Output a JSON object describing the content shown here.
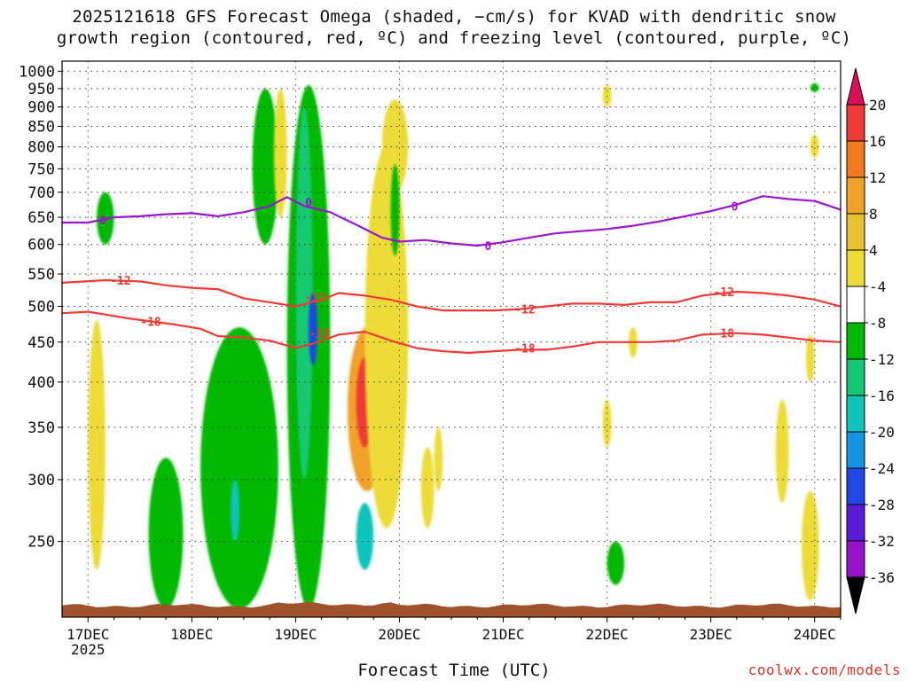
{
  "title_line1": "2025121618 GFS Forecast Omega (shaded, −cm/s) for KVAD with dendritic snow",
  "title_line2": "growth region (contoured, red, ºC) and freezing level (contoured, purple, ºC)",
  "credit": "coolwx.com/models",
  "chart_data": {
    "type": "heatmap",
    "title": "2025121618 GFS Forecast Omega (shaded, −cm/s) for KVAD with dendritic snow growth region (contoured, red, ºC) and freezing level (contoured, purple, ºC)",
    "xlabel": "Forecast Time (UTC)",
    "ylabel": "",
    "x_ticks": [
      {
        "label": "17DEC",
        "sub": "2025",
        "hour": 0
      },
      {
        "label": "18DEC",
        "sub": "",
        "hour": 24
      },
      {
        "label": "19DEC",
        "sub": "",
        "hour": 48
      },
      {
        "label": "20DEC",
        "sub": "",
        "hour": 72
      },
      {
        "label": "21DEC",
        "sub": "",
        "hour": 96
      },
      {
        "label": "22DEC",
        "sub": "",
        "hour": 120
      },
      {
        "label": "23DEC",
        "sub": "",
        "hour": 144
      },
      {
        "label": "24DEC",
        "sub": "",
        "hour": 168
      }
    ],
    "xlim_hours": [
      -6,
      174
    ],
    "y_axis": {
      "type": "log-pressure",
      "unit": "hPa",
      "ylim": [
        1030,
        200
      ],
      "inverted": true
    },
    "y_ticks": [
      250,
      300,
      350,
      400,
      450,
      500,
      550,
      600,
      650,
      700,
      750,
      800,
      850,
      900,
      950,
      1000
    ],
    "colorbar": {
      "label_values": [
        20,
        16,
        12,
        8,
        4,
        -4,
        -8,
        -12,
        -16,
        -20,
        -24,
        -28,
        -32,
        -36
      ],
      "colors": [
        "#da0f5a",
        "#ef3b36",
        "#f2791e",
        "#f2a129",
        "#e8c330",
        "#eddb38",
        "#ffffff",
        "#00b900",
        "#13c870",
        "#10c4bc",
        "#1395e6",
        "#1f47e6",
        "#5c19d8",
        "#9712c8",
        "#a3a3a3"
      ]
    },
    "omega_regions": [
      {
        "t0": 0,
        "t1": 4,
        "p0": 230,
        "p1": 480,
        "value": 5
      },
      {
        "t0": 2,
        "t1": 6,
        "p0": 600,
        "p1": 700,
        "value": -5
      },
      {
        "t0": 14,
        "t1": 22,
        "p0": 205,
        "p1": 320,
        "value": -6
      },
      {
        "t0": 26,
        "t1": 44,
        "p0": 205,
        "p1": 470,
        "value": -6
      },
      {
        "t0": 33,
        "t1": 35,
        "p0": 250,
        "p1": 300,
        "value": -13
      },
      {
        "t0": 46,
        "t1": 56,
        "p0": 205,
        "p1": 960,
        "value": -6
      },
      {
        "t0": 48,
        "t1": 52,
        "p0": 300,
        "p1": 900,
        "value": -10
      },
      {
        "t0": 51,
        "t1": 53,
        "p0": 420,
        "p1": 520,
        "value": -22
      },
      {
        "t0": 38,
        "t1": 44,
        "p0": 600,
        "p1": 950,
        "value": -6
      },
      {
        "t0": 43,
        "t1": 46,
        "p0": 650,
        "p1": 950,
        "value": 5
      },
      {
        "t0": 62,
        "t1": 66,
        "p0": 230,
        "p1": 280,
        "value": -14
      },
      {
        "t0": 60,
        "t1": 69,
        "p0": 290,
        "p1": 470,
        "value": 10
      },
      {
        "t0": 62,
        "t1": 66,
        "p0": 330,
        "p1": 430,
        "value": 18
      },
      {
        "t0": 64,
        "t1": 74,
        "p0": 260,
        "p1": 800,
        "value": 5
      },
      {
        "t0": 68,
        "t1": 74,
        "p0": 700,
        "p1": 920,
        "value": 5
      },
      {
        "t0": 70,
        "t1": 72,
        "p0": 580,
        "p1": 760,
        "value": -6
      },
      {
        "t0": 77,
        "t1": 80,
        "p0": 260,
        "p1": 330,
        "value": 5
      },
      {
        "t0": 80,
        "t1": 82,
        "p0": 290,
        "p1": 350,
        "value": 5
      },
      {
        "t0": 119,
        "t1": 121,
        "p0": 330,
        "p1": 380,
        "value": 5
      },
      {
        "t0": 120,
        "t1": 124,
        "p0": 220,
        "p1": 250,
        "value": -6
      },
      {
        "t0": 125,
        "t1": 127,
        "p0": 430,
        "p1": 470,
        "value": 5
      },
      {
        "t0": 119,
        "t1": 121,
        "p0": 900,
        "p1": 960,
        "value": 5
      },
      {
        "t0": 159,
        "t1": 162,
        "p0": 280,
        "p1": 380,
        "value": 5
      },
      {
        "t0": 165,
        "t1": 169,
        "p0": 210,
        "p1": 290,
        "value": 5
      },
      {
        "t0": 166,
        "t1": 168,
        "p0": 400,
        "p1": 460,
        "value": 5
      },
      {
        "t0": 167,
        "t1": 169,
        "p0": 775,
        "p1": 830,
        "value": 5
      },
      {
        "t0": 167,
        "t1": 169,
        "p0": 940,
        "p1": 965,
        "value": -6
      }
    ],
    "series": [
      {
        "name": "dendritic -18C",
        "color": "#ef3b36",
        "labels": [
          {
            "hour": 14.5,
            "pressure": 478,
            "text": "-18"
          },
          {
            "hour": 53.5,
            "pressure": 462,
            "text": "-18"
          },
          {
            "hour": 101,
            "pressure": 442,
            "text": "-18"
          },
          {
            "hour": 147,
            "pressure": 462,
            "text": "-18"
          }
        ],
        "points": [
          [
            -6,
            490
          ],
          [
            0,
            492
          ],
          [
            10,
            482
          ],
          [
            20,
            474
          ],
          [
            26,
            468
          ],
          [
            30,
            458
          ],
          [
            36,
            456
          ],
          [
            42,
            452
          ],
          [
            48,
            442
          ],
          [
            52,
            448
          ],
          [
            58,
            460
          ],
          [
            64,
            464
          ],
          [
            70,
            452
          ],
          [
            76,
            442
          ],
          [
            82,
            438
          ],
          [
            88,
            436
          ],
          [
            94,
            438
          ],
          [
            100,
            440
          ],
          [
            106,
            440
          ],
          [
            112,
            444
          ],
          [
            118,
            450
          ],
          [
            124,
            450
          ],
          [
            130,
            450
          ],
          [
            136,
            452
          ],
          [
            142,
            460
          ],
          [
            150,
            462
          ],
          [
            156,
            460
          ],
          [
            162,
            456
          ],
          [
            168,
            452
          ],
          [
            174,
            450
          ]
        ]
      },
      {
        "name": "dendritic -12C",
        "color": "#ef3b36",
        "labels": [
          {
            "hour": 7.5,
            "pressure": 540,
            "text": "-12"
          },
          {
            "hour": 52.5,
            "pressure": 514,
            "text": "-12"
          },
          {
            "hour": 101,
            "pressure": 496,
            "text": "-12"
          },
          {
            "hour": 147,
            "pressure": 522,
            "text": "-12"
          }
        ],
        "points": [
          [
            -6,
            536
          ],
          [
            4,
            540
          ],
          [
            12,
            538
          ],
          [
            18,
            532
          ],
          [
            24,
            528
          ],
          [
            30,
            526
          ],
          [
            36,
            512
          ],
          [
            42,
            506
          ],
          [
            48,
            500
          ],
          [
            54,
            510
          ],
          [
            58,
            520
          ],
          [
            64,
            516
          ],
          [
            70,
            510
          ],
          [
            76,
            500
          ],
          [
            82,
            494
          ],
          [
            88,
            494
          ],
          [
            94,
            494
          ],
          [
            100,
            496
          ],
          [
            106,
            500
          ],
          [
            112,
            504
          ],
          [
            118,
            504
          ],
          [
            124,
            502
          ],
          [
            130,
            506
          ],
          [
            136,
            506
          ],
          [
            142,
            516
          ],
          [
            150,
            522
          ],
          [
            156,
            520
          ],
          [
            162,
            516
          ],
          [
            168,
            510
          ],
          [
            174,
            500
          ]
        ]
      },
      {
        "name": "freezing level 0C",
        "color": "#9b15c9",
        "labels": [
          {
            "hour": 3.5,
            "pressure": 645,
            "text": "0"
          },
          {
            "hour": 51,
            "pressure": 680,
            "text": "0"
          },
          {
            "hour": 92.5,
            "pressure": 598,
            "text": "0"
          },
          {
            "hour": 149.5,
            "pressure": 672,
            "text": "0"
          }
        ],
        "points": [
          [
            -6,
            640
          ],
          [
            0,
            640
          ],
          [
            6,
            650
          ],
          [
            12,
            652
          ],
          [
            18,
            656
          ],
          [
            24,
            658
          ],
          [
            30,
            652
          ],
          [
            36,
            660
          ],
          [
            42,
            672
          ],
          [
            46,
            690
          ],
          [
            50,
            672
          ],
          [
            56,
            660
          ],
          [
            62,
            636
          ],
          [
            68,
            612
          ],
          [
            72,
            605
          ],
          [
            78,
            608
          ],
          [
            84,
            602
          ],
          [
            90,
            598
          ],
          [
            96,
            604
          ],
          [
            102,
            612
          ],
          [
            108,
            620
          ],
          [
            114,
            624
          ],
          [
            120,
            628
          ],
          [
            126,
            634
          ],
          [
            132,
            642
          ],
          [
            138,
            652
          ],
          [
            144,
            662
          ],
          [
            150,
            675
          ],
          [
            156,
            692
          ],
          [
            162,
            686
          ],
          [
            168,
            682
          ],
          [
            174,
            665
          ]
        ]
      }
    ],
    "terrain_color": "#a0522d"
  }
}
